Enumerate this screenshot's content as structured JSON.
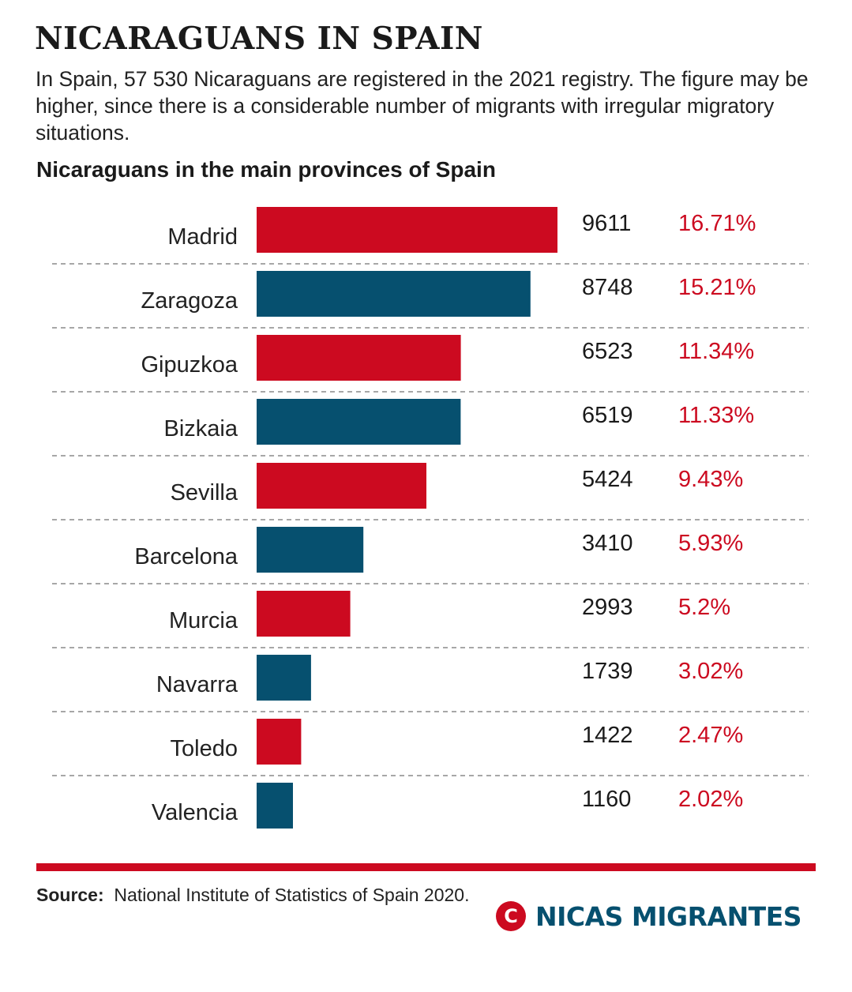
{
  "header": {
    "title": "NICARAGUANS IN SPAIN",
    "subtitle": "In Spain, 57 530 Nicaraguans are registered in the 2021 registry. The figure may be higher, since there is a considerable number of migrants with irregular migratory situations."
  },
  "chart_data": {
    "type": "bar",
    "orientation": "horizontal",
    "title": "Nicaraguans in the main provinces of Spain",
    "categories": [
      "Madrid",
      "Zaragoza",
      "Gipuzkoa",
      "Bizkaia",
      "Sevilla",
      "Barcelona",
      "Murcia",
      "Navarra",
      "Toledo",
      "Valencia"
    ],
    "values": [
      9611,
      8748,
      6523,
      6519,
      5424,
      3410,
      2993,
      1739,
      1422,
      1160
    ],
    "value_labels": [
      "9611",
      "8748",
      "6523",
      "6519",
      "5424",
      "3410",
      "2993",
      "1739",
      "1422",
      "1160"
    ],
    "percent_labels": [
      "16.71%",
      "15.21%",
      "11.34%",
      "11.33%",
      "9.43%",
      "5.93%",
      "5.2%",
      "3.02%",
      "2.47%",
      "2.02%"
    ],
    "bar_colors": [
      "#cc0a20",
      "#06506f"
    ],
    "xlim": [
      0,
      9611
    ],
    "grid": false,
    "separators": "dashed"
  },
  "source": {
    "label": "Source:",
    "text": "National Institute of Statistics of Spain 2020."
  },
  "brand": {
    "mark": "C",
    "name": "NICAS MIGRANTES",
    "color": "#06506f",
    "accent": "#cc0a20"
  }
}
